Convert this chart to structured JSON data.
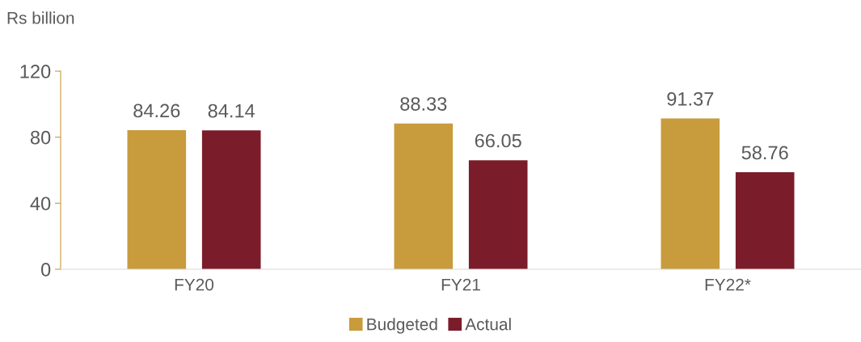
{
  "chart_data": {
    "type": "bar",
    "ylabel": "Rs billion",
    "categories": [
      "FY20",
      "FY21",
      "FY22*"
    ],
    "series": [
      {
        "name": "Budgeted",
        "color": "#c89b3c",
        "values": [
          84.26,
          88.33,
          91.37
        ]
      },
      {
        "name": "Actual",
        "color": "#7b1c2a",
        "values": [
          84.14,
          66.05,
          58.76
        ]
      }
    ],
    "ylim": [
      0,
      120
    ],
    "yticks": [
      0,
      40,
      80,
      120
    ],
    "data_labels": true,
    "legend": "bottom",
    "grid": false
  }
}
